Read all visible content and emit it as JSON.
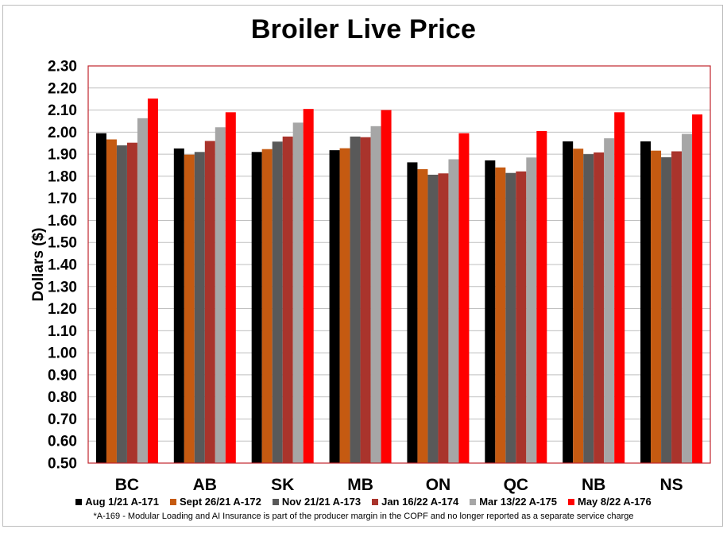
{
  "chart": {
    "title": "Broiler Live Price",
    "ylabel": "Dollars ($)",
    "footnote": "*A-169 - Modular Loading and AI Insurance is part of the producer margin in the COPF and no longer reported as a separate service charge",
    "colors": {
      "plot_border": "#c0262d",
      "gridline": "#bfbfbf",
      "frame": "#bdbdbd"
    }
  },
  "chart_data": {
    "type": "bar",
    "title": "Broiler Live Price",
    "xlabel": "",
    "ylabel": "Dollars ($)",
    "ylim": [
      0.5,
      2.3
    ],
    "ytick_step": 0.1,
    "yticks": [
      "0.50",
      "0.60",
      "0.70",
      "0.80",
      "0.90",
      "1.00",
      "1.10",
      "1.20",
      "1.30",
      "1.40",
      "1.50",
      "1.60",
      "1.70",
      "1.80",
      "1.90",
      "2.00",
      "2.10",
      "2.20",
      "2.30"
    ],
    "grid": true,
    "legend_position": "bottom",
    "categories": [
      "BC",
      "AB",
      "SK",
      "MB",
      "ON",
      "QC",
      "NB",
      "NS"
    ],
    "series": [
      {
        "name": "Aug 1/21 A-171",
        "color": "#000000",
        "values": [
          1.995,
          1.926,
          1.91,
          1.918,
          1.863,
          1.872,
          1.958,
          1.958
        ]
      },
      {
        "name": "Sept 26/21 A-172",
        "color": "#c55a11",
        "values": [
          1.967,
          1.898,
          1.923,
          1.927,
          1.832,
          1.84,
          1.925,
          1.916
        ]
      },
      {
        "name": "Nov 21/21 A-173",
        "color": "#595959",
        "values": [
          1.94,
          1.91,
          1.957,
          1.98,
          1.807,
          1.815,
          1.9,
          1.886
        ]
      },
      {
        "name": "Jan 16/22 A-174",
        "color": "#a9342c",
        "values": [
          1.952,
          1.96,
          1.98,
          1.977,
          1.813,
          1.822,
          1.908,
          1.913
        ]
      },
      {
        "name": "Mar 13/22 A-175",
        "color": "#a6a6a6",
        "values": [
          2.063,
          2.022,
          2.043,
          2.027,
          1.877,
          1.885,
          1.972,
          1.992
        ]
      },
      {
        "name": "May 8/22 A-176",
        "color": "#ff0000",
        "values": [
          2.152,
          2.09,
          2.105,
          2.1,
          1.995,
          2.005,
          2.09,
          2.08
        ]
      }
    ]
  }
}
